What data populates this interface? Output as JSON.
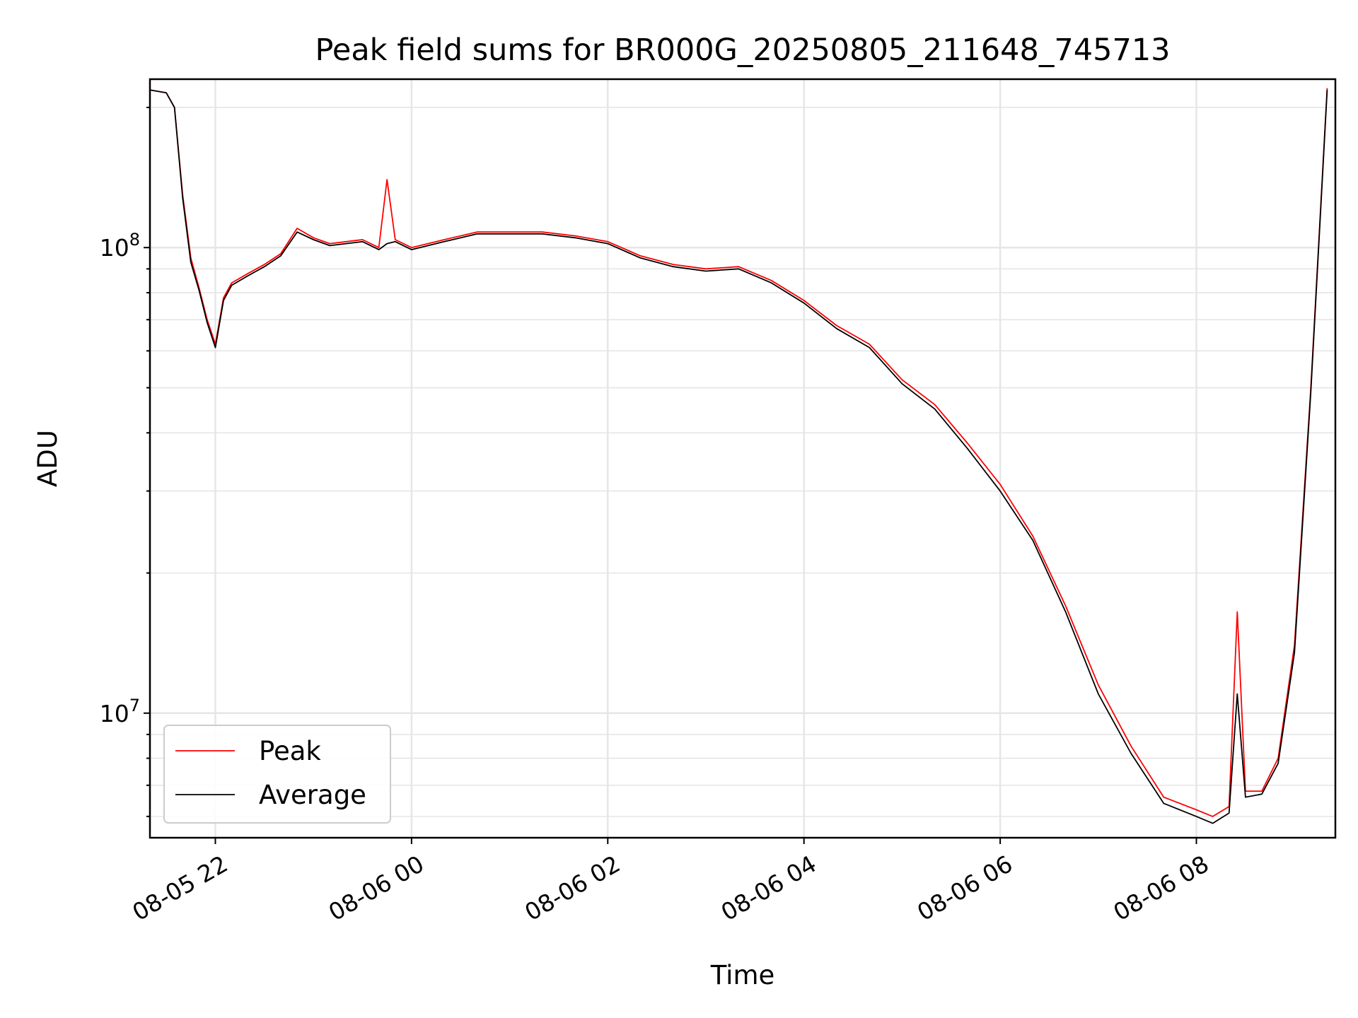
{
  "chart_data": {
    "type": "line",
    "title": "Peak field sums for BR000G_20250805_211648_745713",
    "xlabel": "Time",
    "ylabel": "ADU",
    "yscale": "log",
    "xlim": [
      "2025-08-05 21:20",
      "2025-08-06 09:25"
    ],
    "ylim": [
      5400000,
      230000000
    ],
    "grid": true,
    "legend_position": "bottom-left",
    "x_ticks": [
      {
        "value": "2025-08-05 22:00",
        "label": "08-05 22"
      },
      {
        "value": "2025-08-06 00:00",
        "label": "08-06 00"
      },
      {
        "value": "2025-08-06 02:00",
        "label": "08-06 02"
      },
      {
        "value": "2025-08-06 04:00",
        "label": "08-06 04"
      },
      {
        "value": "2025-08-06 06:00",
        "label": "08-06 06"
      },
      {
        "value": "2025-08-06 08:00",
        "label": "08-06 08"
      }
    ],
    "y_ticks": [
      {
        "value": 10000000,
        "base": "10",
        "exp": "7"
      },
      {
        "value": 100000000,
        "base": "10",
        "exp": "8"
      }
    ],
    "x": [
      "2025-08-05 21:20",
      "2025-08-05 21:30",
      "2025-08-05 21:35",
      "2025-08-05 21:40",
      "2025-08-05 21:45",
      "2025-08-05 21:50",
      "2025-08-05 21:55",
      "2025-08-05 22:00",
      "2025-08-05 22:05",
      "2025-08-05 22:10",
      "2025-08-05 22:20",
      "2025-08-05 22:30",
      "2025-08-05 22:40",
      "2025-08-05 22:50",
      "2025-08-05 23:00",
      "2025-08-05 23:10",
      "2025-08-05 23:20",
      "2025-08-05 23:30",
      "2025-08-05 23:40",
      "2025-08-05 23:45",
      "2025-08-05 23:50",
      "2025-08-06 00:00",
      "2025-08-06 00:20",
      "2025-08-06 00:40",
      "2025-08-06 01:00",
      "2025-08-06 01:20",
      "2025-08-06 01:40",
      "2025-08-06 02:00",
      "2025-08-06 02:20",
      "2025-08-06 02:40",
      "2025-08-06 03:00",
      "2025-08-06 03:20",
      "2025-08-06 03:40",
      "2025-08-06 04:00",
      "2025-08-06 04:20",
      "2025-08-06 04:40",
      "2025-08-06 05:00",
      "2025-08-06 05:20",
      "2025-08-06 05:40",
      "2025-08-06 06:00",
      "2025-08-06 06:20",
      "2025-08-06 06:40",
      "2025-08-06 07:00",
      "2025-08-06 07:20",
      "2025-08-06 07:40",
      "2025-08-06 08:00",
      "2025-08-06 08:10",
      "2025-08-06 08:20",
      "2025-08-06 08:25",
      "2025-08-06 08:30",
      "2025-08-06 08:40",
      "2025-08-06 08:50",
      "2025-08-06 09:00",
      "2025-08-06 09:10",
      "2025-08-06 09:20"
    ],
    "series": [
      {
        "name": "Peak",
        "color": "#ff0000",
        "values": [
          218000000,
          215000000,
          200000000,
          130000000,
          95000000,
          82000000,
          70000000,
          62000000,
          78000000,
          84000000,
          88000000,
          92000000,
          97000000,
          110000000,
          105000000,
          102000000,
          103000000,
          104000000,
          100000000,
          140000000,
          104000000,
          100000000,
          104000000,
          108000000,
          108000000,
          108000000,
          106000000,
          103000000,
          96000000,
          92000000,
          90000000,
          91000000,
          85000000,
          77000000,
          68000000,
          62000000,
          52000000,
          46000000,
          38000000,
          31000000,
          24000000,
          17000000,
          11500000,
          8500000,
          6600000,
          6200000,
          6000000,
          6300000,
          16500000,
          6800000,
          6800000,
          8000000,
          14000000,
          50000000,
          220000000
        ]
      },
      {
        "name": "Average",
        "color": "#000000",
        "values": [
          218000000,
          215000000,
          200000000,
          128000000,
          93000000,
          81000000,
          69000000,
          61000000,
          77000000,
          83000000,
          87000000,
          91000000,
          96000000,
          108000000,
          104000000,
          101000000,
          102000000,
          103000000,
          99000000,
          102000000,
          103000000,
          99000000,
          103000000,
          107000000,
          107000000,
          107000000,
          105000000,
          102000000,
          95000000,
          91000000,
          89000000,
          90000000,
          84000000,
          76000000,
          67000000,
          61000000,
          51000000,
          45000000,
          37000000,
          30000000,
          23500000,
          16500000,
          11000000,
          8200000,
          6400000,
          6000000,
          5800000,
          6100000,
          11000000,
          6600000,
          6700000,
          7800000,
          13500000,
          49000000,
          218000000
        ]
      }
    ]
  }
}
